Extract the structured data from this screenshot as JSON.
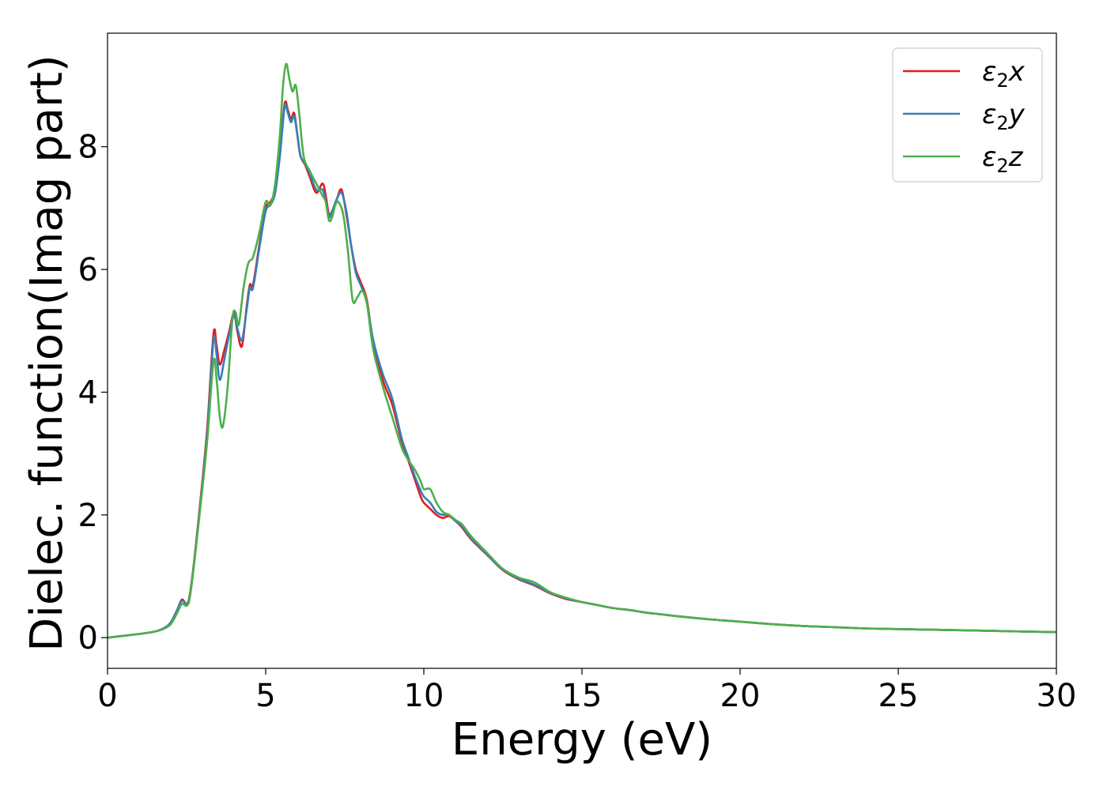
{
  "chart_data": {
    "type": "line",
    "xlabel": "Energy (eV)",
    "ylabel": "Dielec. function(Imag part)",
    "xlim": [
      0,
      30
    ],
    "ylim": [
      -0.5,
      9.85
    ],
    "xticks": [
      0,
      5,
      10,
      15,
      20,
      25,
      30
    ],
    "yticks": [
      0,
      2,
      4,
      6,
      8
    ],
    "grid": false,
    "legend_position": "top-right",
    "series": [
      {
        "name": "ε2x",
        "legend": {
          "base": "ε",
          "sub": "2",
          "axis": "x"
        },
        "color": "#e41a1c",
        "x": [
          0,
          1,
          1.5,
          1.8,
          2.0,
          2.2,
          2.35,
          2.5,
          2.6,
          2.75,
          2.95,
          3.15,
          3.35,
          3.45,
          3.55,
          3.7,
          3.85,
          4.0,
          4.1,
          4.25,
          4.4,
          4.5,
          4.6,
          4.8,
          5.0,
          5.15,
          5.3,
          5.45,
          5.6,
          5.7,
          5.8,
          5.9,
          6.0,
          6.1,
          6.25,
          6.4,
          6.6,
          6.8,
          6.9,
          7.0,
          7.1,
          7.25,
          7.4,
          7.55,
          7.7,
          7.85,
          8.0,
          8.2,
          8.4,
          8.7,
          9.0,
          9.3,
          9.5,
          9.7,
          9.9,
          10.0,
          10.2,
          10.4,
          10.6,
          10.8,
          11.0,
          11.2,
          11.5,
          12.0,
          12.5,
          13.0,
          13.5,
          14.0,
          14.5,
          15.0,
          15.5,
          16.0,
          16.5,
          17.0,
          17.5,
          18.0,
          19.0,
          20.0,
          21.0,
          22.0,
          23.0,
          24.0,
          25.0,
          26.0,
          27.0,
          28.0,
          29.0,
          30.0
        ],
        "values": [
          0.0,
          0.06,
          0.1,
          0.16,
          0.25,
          0.45,
          0.62,
          0.55,
          0.7,
          1.3,
          2.3,
          3.4,
          4.95,
          4.75,
          4.45,
          4.7,
          5.0,
          5.3,
          5.0,
          4.75,
          5.4,
          5.75,
          5.75,
          6.4,
          7.0,
          7.1,
          7.3,
          7.9,
          8.7,
          8.6,
          8.45,
          8.55,
          8.2,
          7.85,
          7.7,
          7.5,
          7.25,
          7.4,
          7.2,
          6.9,
          6.95,
          7.15,
          7.3,
          6.9,
          6.4,
          6.0,
          5.8,
          5.5,
          4.8,
          4.2,
          3.8,
          3.2,
          2.9,
          2.6,
          2.3,
          2.2,
          2.1,
          2.0,
          1.95,
          1.98,
          1.9,
          1.8,
          1.6,
          1.35,
          1.1,
          0.95,
          0.85,
          0.72,
          0.63,
          0.58,
          0.53,
          0.48,
          0.45,
          0.41,
          0.38,
          0.35,
          0.3,
          0.26,
          0.22,
          0.19,
          0.17,
          0.15,
          0.14,
          0.13,
          0.12,
          0.11,
          0.1,
          0.09
        ]
      },
      {
        "name": "ε2y",
        "legend": {
          "base": "ε",
          "sub": "2",
          "axis": "y"
        },
        "color": "#377eb8",
        "x": [
          0,
          1,
          1.5,
          1.8,
          2.0,
          2.2,
          2.35,
          2.5,
          2.6,
          2.75,
          2.95,
          3.15,
          3.35,
          3.45,
          3.55,
          3.7,
          3.85,
          4.0,
          4.1,
          4.25,
          4.4,
          4.5,
          4.6,
          4.8,
          5.0,
          5.15,
          5.3,
          5.45,
          5.6,
          5.7,
          5.8,
          5.9,
          6.0,
          6.1,
          6.25,
          6.4,
          6.6,
          6.8,
          6.9,
          7.0,
          7.1,
          7.25,
          7.4,
          7.55,
          7.7,
          7.85,
          8.0,
          8.2,
          8.4,
          8.7,
          9.0,
          9.3,
          9.5,
          9.7,
          9.9,
          10.0,
          10.2,
          10.4,
          10.6,
          10.8,
          11.0,
          11.2,
          11.5,
          12.0,
          12.5,
          13.0,
          13.5,
          14.0,
          14.5,
          15.0,
          15.5,
          16.0,
          16.5,
          17.0,
          17.5,
          18.0,
          19.0,
          20.0,
          21.0,
          22.0,
          23.0,
          24.0,
          25.0,
          26.0,
          27.0,
          28.0,
          29.0,
          30.0
        ],
        "values": [
          0.0,
          0.06,
          0.1,
          0.16,
          0.25,
          0.45,
          0.6,
          0.55,
          0.68,
          1.28,
          2.25,
          3.3,
          4.85,
          4.6,
          4.2,
          4.55,
          4.95,
          5.25,
          5.05,
          4.85,
          5.35,
          5.7,
          5.7,
          6.35,
          6.95,
          7.05,
          7.25,
          7.85,
          8.65,
          8.55,
          8.4,
          8.5,
          8.2,
          7.85,
          7.72,
          7.55,
          7.3,
          7.3,
          7.1,
          6.85,
          6.95,
          7.15,
          7.25,
          6.95,
          6.4,
          5.95,
          5.75,
          5.45,
          4.85,
          4.3,
          3.9,
          3.25,
          2.95,
          2.65,
          2.4,
          2.3,
          2.2,
          2.05,
          2.0,
          2.0,
          1.9,
          1.82,
          1.62,
          1.36,
          1.11,
          0.96,
          0.86,
          0.73,
          0.64,
          0.58,
          0.53,
          0.48,
          0.45,
          0.41,
          0.38,
          0.35,
          0.3,
          0.26,
          0.22,
          0.19,
          0.17,
          0.15,
          0.14,
          0.13,
          0.12,
          0.11,
          0.1,
          0.09
        ]
      },
      {
        "name": "ε2z",
        "legend": {
          "base": "ε",
          "sub": "2",
          "axis": "z"
        },
        "color": "#4daf4a",
        "x": [
          0,
          1,
          1.5,
          1.8,
          2.0,
          2.2,
          2.35,
          2.5,
          2.6,
          2.75,
          2.95,
          3.15,
          3.35,
          3.45,
          3.55,
          3.65,
          3.8,
          3.95,
          4.05,
          4.15,
          4.3,
          4.45,
          4.6,
          4.8,
          5.0,
          5.15,
          5.3,
          5.45,
          5.55,
          5.65,
          5.75,
          5.85,
          5.95,
          6.05,
          6.2,
          6.4,
          6.6,
          6.8,
          6.9,
          7.0,
          7.1,
          7.2,
          7.3,
          7.45,
          7.6,
          7.75,
          7.9,
          8.05,
          8.2,
          8.4,
          8.7,
          9.0,
          9.3,
          9.5,
          9.7,
          9.9,
          10.0,
          10.2,
          10.4,
          10.6,
          10.8,
          11.0,
          11.2,
          11.5,
          12.0,
          12.5,
          13.0,
          13.5,
          14.0,
          14.5,
          15.0,
          15.5,
          16.0,
          16.5,
          17.0,
          17.5,
          18.0,
          19.0,
          20.0,
          21.0,
          22.0,
          23.0,
          24.0,
          25.0,
          26.0,
          27.0,
          28.0,
          29.0,
          30.0
        ],
        "values": [
          0.0,
          0.06,
          0.1,
          0.15,
          0.22,
          0.4,
          0.55,
          0.52,
          0.65,
          1.25,
          2.2,
          3.2,
          4.5,
          4.2,
          3.6,
          3.45,
          4.1,
          5.2,
          5.3,
          5.1,
          5.7,
          6.1,
          6.2,
          6.6,
          7.1,
          7.05,
          7.4,
          8.2,
          9.0,
          9.35,
          9.1,
          8.9,
          9.0,
          8.6,
          7.85,
          7.6,
          7.4,
          7.2,
          7.1,
          6.8,
          6.85,
          7.05,
          7.1,
          6.9,
          6.3,
          5.5,
          5.55,
          5.65,
          5.45,
          4.7,
          4.1,
          3.6,
          3.1,
          2.9,
          2.75,
          2.55,
          2.42,
          2.42,
          2.2,
          2.05,
          2.0,
          1.92,
          1.85,
          1.65,
          1.38,
          1.12,
          0.98,
          0.9,
          0.74,
          0.65,
          0.58,
          0.53,
          0.48,
          0.45,
          0.41,
          0.38,
          0.35,
          0.3,
          0.26,
          0.22,
          0.19,
          0.17,
          0.15,
          0.14,
          0.13,
          0.12,
          0.11,
          0.1,
          0.09
        ]
      }
    ]
  }
}
